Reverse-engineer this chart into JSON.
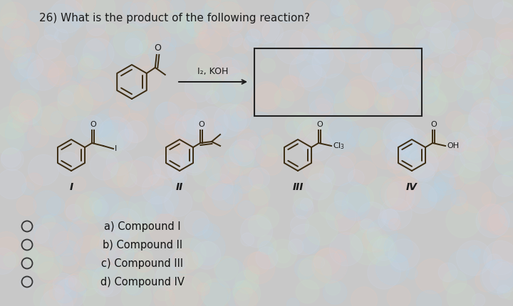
{
  "title": "26) What is the product of the following reaction?",
  "reagent": "I₂, KOH",
  "bg_color": "#c8c8c8",
  "choices": [
    "a) Compound I",
    "b) Compound II",
    "c) Compound III",
    "d) Compound IV"
  ],
  "compound_labels": [
    "I",
    "II",
    "III",
    "IV"
  ],
  "line_color": "#3a2a10",
  "text_color": "#1a1a1a",
  "choice_text_color": "#111111"
}
